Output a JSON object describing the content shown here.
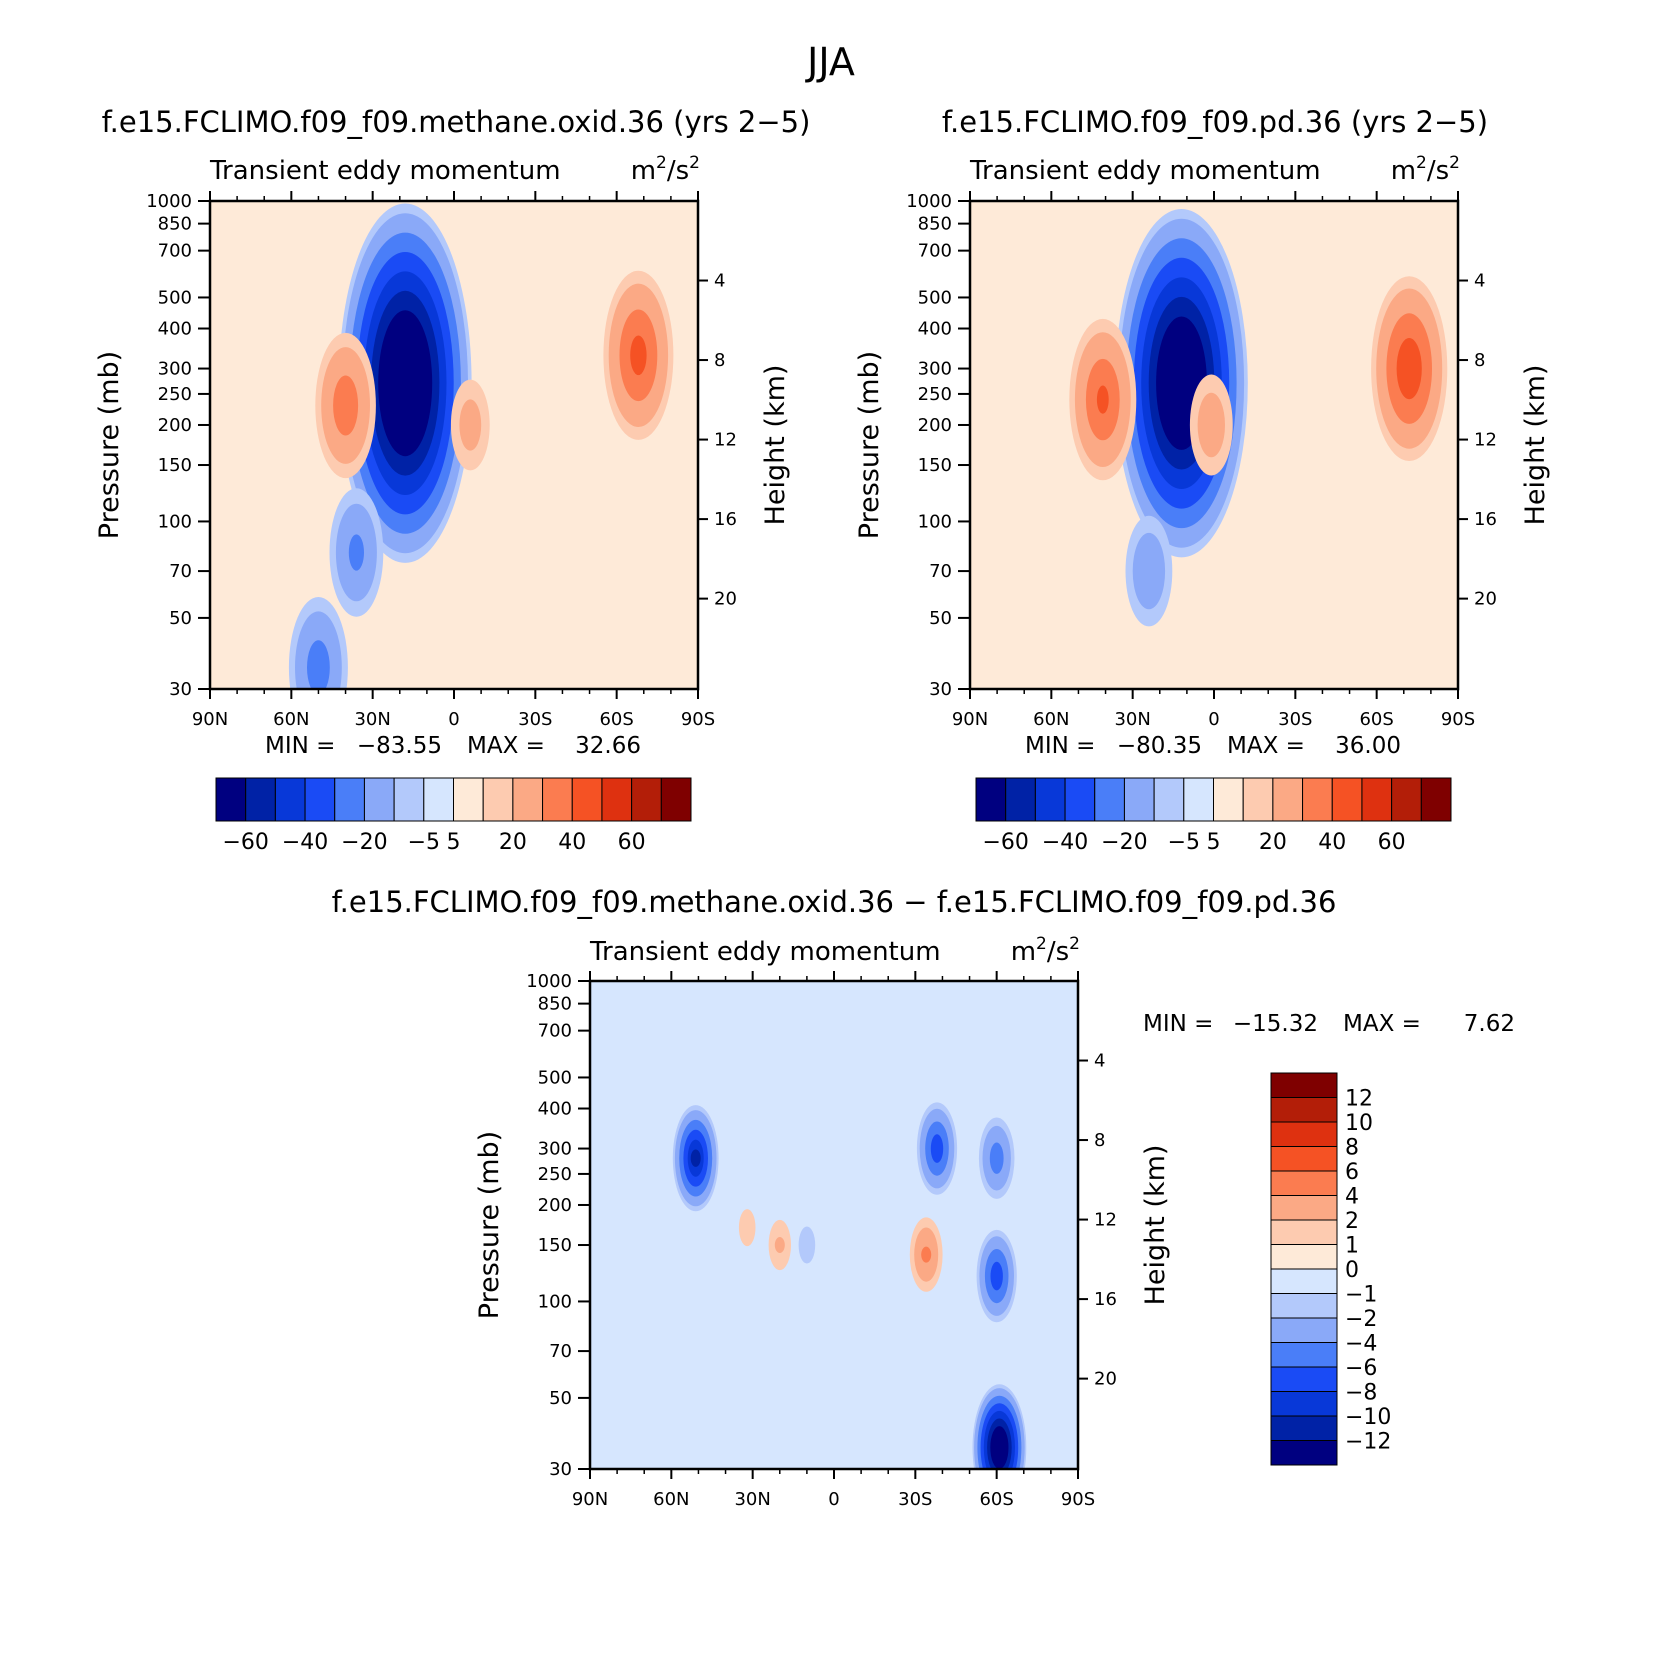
{
  "figure": {
    "title": "JJA"
  },
  "chart_data": [
    {
      "type": "heatmap",
      "title": "f.e15.FCLIMO.f09_f09.methane.oxid.36 (yrs 2−5)",
      "subtitle": "Transient eddy momentum",
      "units": "m²/s²",
      "units_base": "m",
      "units_sup1": "2",
      "units_mid": "/s",
      "units_sup2": "2",
      "xlabel": "",
      "ylabel": "Pressure (mb)",
      "ylabel_right": "Height (km)",
      "x_ticks": [
        "90N",
        "60N",
        "30N",
        "0",
        "30S",
        "60S",
        "90S"
      ],
      "y_ticks": [
        "30",
        "50",
        "70",
        "100",
        "150",
        "200",
        "250",
        "300",
        "400",
        "500",
        "700",
        "850",
        "1000"
      ],
      "y_right_ticks": [
        "20",
        "16",
        "12",
        "8",
        "4"
      ],
      "xlim": [
        90,
        -90
      ],
      "ylim": [
        1000,
        30
      ],
      "stats": {
        "min_label": "MIN =",
        "min": "−83.55",
        "max_label": "MAX =",
        "max": "32.66"
      },
      "colorbar_labels": [
        "−60",
        "−40",
        "−20",
        "−5",
        "5",
        "20",
        "40",
        "60"
      ],
      "features": [
        {
          "lat": 18,
          "p": 270,
          "value": -83
        },
        {
          "lat": 36,
          "p": 80,
          "value": -22
        },
        {
          "lat": 50,
          "p": 35,
          "value": -25
        },
        {
          "lat": -68,
          "p": 330,
          "value": 32
        },
        {
          "lat": 40,
          "p": 230,
          "value": 26
        },
        {
          "lat": -6,
          "p": 200,
          "value": 14
        },
        {
          "lat": 64,
          "p": 300,
          "value": -4
        }
      ]
    },
    {
      "type": "heatmap",
      "title": "f.e15.FCLIMO.f09_f09.pd.36 (yrs 2−5)",
      "subtitle": "Transient eddy momentum",
      "units": "m²/s²",
      "units_base": "m",
      "units_sup1": "2",
      "units_mid": "/s",
      "units_sup2": "2",
      "xlabel": "",
      "ylabel": "Pressure (mb)",
      "ylabel_right": "Height (km)",
      "x_ticks": [
        "90N",
        "60N",
        "30N",
        "0",
        "30S",
        "60S",
        "90S"
      ],
      "y_ticks": [
        "30",
        "50",
        "70",
        "100",
        "150",
        "200",
        "250",
        "300",
        "400",
        "500",
        "700",
        "850",
        "1000"
      ],
      "y_right_ticks": [
        "20",
        "16",
        "12",
        "8",
        "4"
      ],
      "xlim": [
        90,
        -90
      ],
      "ylim": [
        1000,
        30
      ],
      "stats": {
        "min_label": "MIN =",
        "min": "−80.35",
        "max_label": "MAX =",
        "max": "36.00"
      },
      "colorbar_labels": [
        "−60",
        "−40",
        "−20",
        "−5",
        "5",
        "20",
        "40",
        "60"
      ],
      "features": [
        {
          "lat": 12,
          "p": 270,
          "value": -80
        },
        {
          "lat": 24,
          "p": 70,
          "value": -18
        },
        {
          "lat": -72,
          "p": 300,
          "value": 36
        },
        {
          "lat": 41,
          "p": 240,
          "value": 30
        },
        {
          "lat": 1,
          "p": 200,
          "value": 16
        },
        {
          "lat": 68,
          "p": 300,
          "value": -4
        }
      ]
    },
    {
      "type": "heatmap",
      "title": "f.e15.FCLIMO.f09_f09.methane.oxid.36 − f.e15.FCLIMO.f09_f09.pd.36",
      "subtitle": "Transient eddy momentum",
      "units": "m²/s²",
      "units_base": "m",
      "units_sup1": "2",
      "units_mid": "/s",
      "units_sup2": "2",
      "xlabel": "",
      "ylabel": "Pressure (mb)",
      "ylabel_right": "Height (km)",
      "x_ticks": [
        "90N",
        "60N",
        "30N",
        "0",
        "30S",
        "60S",
        "90S"
      ],
      "y_ticks": [
        "30",
        "50",
        "70",
        "100",
        "150",
        "200",
        "250",
        "300",
        "400",
        "500",
        "700",
        "850",
        "1000"
      ],
      "y_right_ticks": [
        "20",
        "16",
        "12",
        "8",
        "4"
      ],
      "xlim": [
        90,
        -90
      ],
      "ylim": [
        1000,
        30
      ],
      "stats": {
        "min_label": "MIN =",
        "min": "−15.32",
        "max_label": "MAX =",
        "max": "7.62"
      },
      "colorbar_labels": [
        "12",
        "10",
        "8",
        "6",
        "4",
        "2",
        "1",
        "0",
        "−1",
        "−2",
        "−4",
        "−6",
        "−8",
        "−10",
        "−12"
      ],
      "features": [
        {
          "lat": -61,
          "p": 35,
          "value": -15
        },
        {
          "lat": -60,
          "p": 120,
          "value": -7
        },
        {
          "lat": 51,
          "p": 280,
          "value": -10
        },
        {
          "lat": -38,
          "p": 300,
          "value": -7
        },
        {
          "lat": -60,
          "p": 280,
          "value": -5
        },
        {
          "lat": -34,
          "p": 140,
          "value": 4
        },
        {
          "lat": 20,
          "p": 150,
          "value": 2
        },
        {
          "lat": 32,
          "p": 170,
          "value": 1.5
        },
        {
          "lat": 10,
          "p": 150,
          "value": -1.5
        },
        {
          "lat": -5,
          "p": 400,
          "value": 0.8
        }
      ]
    }
  ],
  "palette_main": [
    "#000080",
    "#0022a6",
    "#0838d8",
    "#1a4bf5",
    "#4a7ef8",
    "#8aa9f8",
    "#b3c9fb",
    "#d6e6fe",
    "#feead8",
    "#fdcbb0",
    "#fba985",
    "#fb7c50",
    "#f55224",
    "#de3110",
    "#b31e08",
    "#7f0000"
  ],
  "palette_diff": [
    "#7f0000",
    "#b31e08",
    "#de3110",
    "#f55224",
    "#fb7c50",
    "#fba985",
    "#fdcbb0",
    "#feead8",
    "#d6e6fe",
    "#b3c9fb",
    "#8aa9f8",
    "#4a7ef8",
    "#1a4bf5",
    "#0838d8",
    "#0022a6",
    "#000080"
  ]
}
